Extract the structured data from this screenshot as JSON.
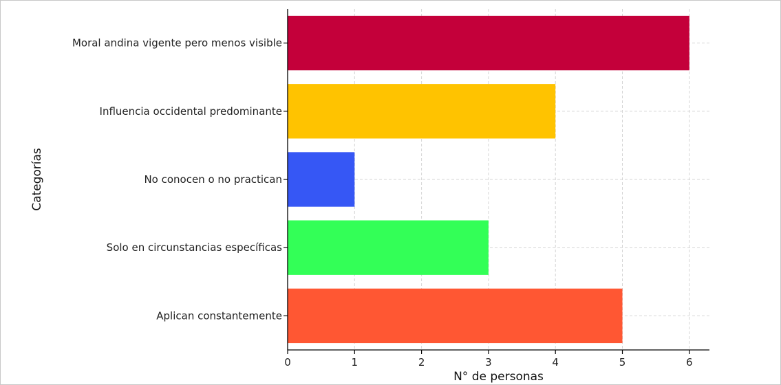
{
  "chart_data": {
    "type": "bar",
    "orientation": "horizontal",
    "categories": [
      "Moral andina vigente pero menos visible",
      "Influencia occidental predominante",
      "No conocen o no practican",
      "Solo en circunstancias específicas",
      "Aplican constantemente"
    ],
    "values": [
      6,
      4,
      1,
      3,
      5
    ],
    "colors": [
      "#c4003a",
      "#ffc300",
      "#3657f5",
      "#33ff57",
      "#ff5733"
    ],
    "xlabel": "N° de personas",
    "ylabel": "Categorías",
    "xlim": [
      0,
      6.3
    ],
    "xticks": [
      0,
      1,
      2,
      3,
      4,
      5,
      6
    ],
    "grid": true,
    "grid_style": "dashed",
    "legend": "none"
  }
}
